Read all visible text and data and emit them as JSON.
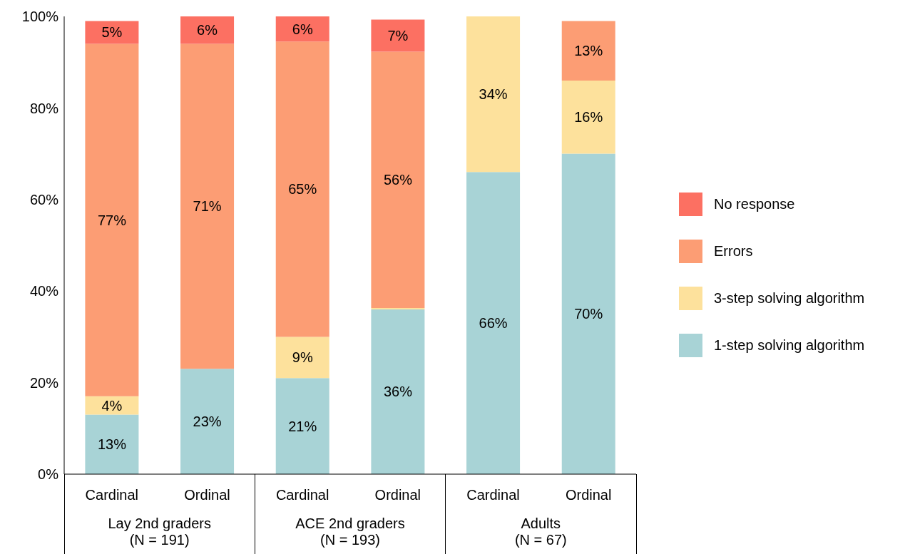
{
  "chart_data": {
    "type": "bar",
    "stacked": true,
    "categories": [
      "Cardinal",
      "Ordinal",
      "Cardinal",
      "Ordinal",
      "Cardinal",
      "Ordinal"
    ],
    "series": [
      {
        "name": "1-step solving algorithm",
        "color": "#a8d3d6",
        "values": [
          13,
          23,
          21,
          36,
          66,
          70
        ],
        "value_labels": [
          "13%",
          "23%",
          "21%",
          "36%",
          "66%",
          "70%"
        ]
      },
      {
        "name": "3-step solving algorithm",
        "color": "#fde19c",
        "values": [
          4,
          0,
          9,
          0.3,
          34,
          16
        ],
        "value_labels": [
          "4%",
          null,
          "9%",
          null,
          "34%",
          "16%"
        ]
      },
      {
        "name": "Errors",
        "color": "#fc9d74",
        "values": [
          77,
          71,
          64.5,
          56,
          0,
          13
        ],
        "value_labels": [
          "77%",
          "71%",
          "65%",
          "56%",
          null,
          "13%"
        ]
      },
      {
        "name": "No response",
        "color": "#fc7062",
        "values": [
          5,
          6,
          5.5,
          7,
          0,
          0
        ],
        "value_labels": [
          "5%",
          "6%",
          "6%",
          "7%",
          null,
          null
        ]
      }
    ],
    "annotations": [
      "Lay 2nd graders\n(N = 191)",
      "ACE 2nd graders\n(N = 193)",
      "Adults\n(N = 67)"
    ],
    "ylim": [
      0,
      100
    ],
    "yticks": [
      {
        "value": 0,
        "label": "0%"
      },
      {
        "value": 20,
        "label": "20%"
      },
      {
        "value": 40,
        "label": "40%"
      },
      {
        "value": 60,
        "label": "60%"
      },
      {
        "value": 80,
        "label": "80%"
      },
      {
        "value": 100,
        "label": "100%"
      }
    ],
    "grid": false,
    "legend": "right"
  }
}
